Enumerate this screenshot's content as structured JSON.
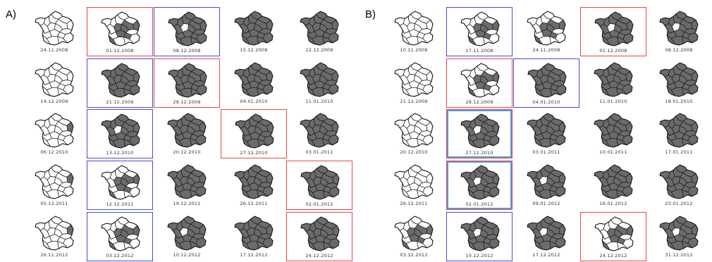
{
  "colors": {
    "filled": "#6b6b6b",
    "empty": "#ffffff",
    "stroke": "#1a1a1a",
    "highlight_red": "#e84848",
    "highlight_blue": "#4b4bd8"
  },
  "panels": [
    {
      "label": "A)",
      "rows": [
        [
          {
            "date": "24.11.2008",
            "fill": "none"
          },
          {
            "date": "01.12.2008",
            "fill": "partial",
            "highlight": "red"
          },
          {
            "date": "08.12.2008",
            "fill": "most",
            "highlight": "blue"
          },
          {
            "date": "15.12.2008",
            "fill": "full"
          },
          {
            "date": "22.12.2008",
            "fill": "full"
          }
        ],
        [
          {
            "date": "14.12.2009",
            "fill": "none"
          },
          {
            "date": "21.12.2009",
            "fill": "full",
            "highlight": "blue"
          },
          {
            "date": "28.12.2009",
            "fill": "full",
            "highlight": "red"
          },
          {
            "date": "04.01.2010",
            "fill": "full"
          },
          {
            "date": "11.01.2010",
            "fill": "full"
          }
        ],
        [
          {
            "date": "06.12.2010",
            "fill": "trace"
          },
          {
            "date": "13.12.2010",
            "fill": "most",
            "highlight": "blue"
          },
          {
            "date": "20.12.2010",
            "fill": "full"
          },
          {
            "date": "27.12.2010",
            "fill": "full",
            "highlight": "red"
          },
          {
            "date": "03.01.2011",
            "fill": "full"
          }
        ],
        [
          {
            "date": "05.12.2011",
            "fill": "trace"
          },
          {
            "date": "12.12.2011",
            "fill": "partial",
            "highlight": "blue"
          },
          {
            "date": "19.12.2011",
            "fill": "full"
          },
          {
            "date": "26.12.2011",
            "fill": "full"
          },
          {
            "date": "02.01.2012",
            "fill": "full",
            "highlight": "red"
          }
        ],
        [
          {
            "date": "26.11.2012",
            "fill": "trace"
          },
          {
            "date": "03.12.2012",
            "fill": "partial",
            "highlight": "blue"
          },
          {
            "date": "10.12.2012",
            "fill": "most"
          },
          {
            "date": "17.12.2012",
            "fill": "full"
          },
          {
            "date": "24.12.2012",
            "fill": "full",
            "highlight": "red"
          }
        ]
      ]
    },
    {
      "label": "B)",
      "rows": [
        [
          {
            "date": "10.11.2008",
            "fill": "none"
          },
          {
            "date": "17.11.2008",
            "fill": "partial",
            "highlight": "blue"
          },
          {
            "date": "24.11.2008",
            "fill": "partial"
          },
          {
            "date": "01.12.2008",
            "fill": "most",
            "highlight": "red"
          },
          {
            "date": "08.12.2008",
            "fill": "most"
          }
        ],
        [
          {
            "date": "21.12.2009",
            "fill": "none"
          },
          {
            "date": "28.12.2009",
            "fill": "partial",
            "highlight": "red"
          },
          {
            "date": "04.01.2010",
            "fill": "full",
            "highlight": "blue"
          },
          {
            "date": "11.01.2010",
            "fill": "full"
          },
          {
            "date": "18.01.2010",
            "fill": "full"
          }
        ],
        [
          {
            "date": "20.12.2010",
            "fill": "none"
          },
          {
            "date": "27.12.2010",
            "fill": "most",
            "highlight": "both"
          },
          {
            "date": "03.01.2011",
            "fill": "full"
          },
          {
            "date": "10.01.2011",
            "fill": "full"
          },
          {
            "date": "17.01.2011",
            "fill": "full"
          }
        ],
        [
          {
            "date": "26.12.2011",
            "fill": "none"
          },
          {
            "date": "02.01.2012",
            "fill": "most",
            "highlight": "both"
          },
          {
            "date": "09.01.2012",
            "fill": "most"
          },
          {
            "date": "16.01.2012",
            "fill": "full"
          },
          {
            "date": "23.01.2012",
            "fill": "full"
          }
        ],
        [
          {
            "date": "03.12.2012",
            "fill": "partial"
          },
          {
            "date": "10.12.2012",
            "fill": "most",
            "highlight": "blue"
          },
          {
            "date": "17.12.2012",
            "fill": "most"
          },
          {
            "date": "24.12.2012",
            "fill": "partial",
            "highlight": "red"
          },
          {
            "date": "31.12.2012",
            "fill": "most"
          }
        ]
      ]
    }
  ]
}
